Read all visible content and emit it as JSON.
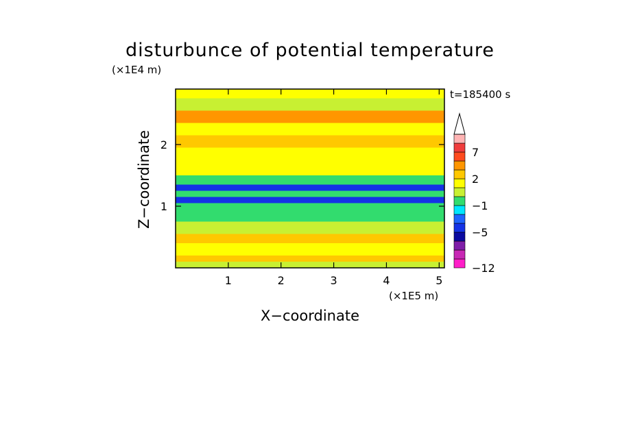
{
  "chart_data": {
    "type": "heatmap",
    "title": "disturbunce of potential temperature",
    "xlabel": "X−coordinate",
    "ylabel": "Z−coordinate",
    "x_unit": "(×1E5 m)",
    "z_unit": "(×1E4 m)",
    "time_label": "t=185400 s",
    "xlim": [
      0,
      5.1
    ],
    "ylim": [
      0,
      2.9
    ],
    "x_ticks": [
      1,
      2,
      3,
      4,
      5
    ],
    "y_ticks": [
      1,
      2
    ],
    "colorbar": {
      "levels": [
        -12,
        -11,
        -9,
        -7,
        -5,
        -4,
        -3,
        -1,
        0,
        1,
        2,
        3,
        5,
        7,
        8,
        9
      ],
      "tick_labels": [
        "7",
        "2",
        "−1",
        "−5",
        "−12"
      ],
      "tick_values": [
        7,
        2,
        -1,
        -5,
        -12
      ],
      "colors": [
        "#ff1ec8",
        "#c828b4",
        "#7f1ea8",
        "#0a0aa0",
        "#1432e6",
        "#1e64ff",
        "#00e6ff",
        "#32dc6e",
        "#c8f032",
        "#ffff00",
        "#ffc800",
        "#ff9600",
        "#ff4b1e",
        "#f03c3c",
        "#ffb4b4"
      ],
      "extend": "max"
    },
    "bands": [
      {
        "z": [
          0.0,
          0.1
        ],
        "value": 0.5
      },
      {
        "z": [
          0.1,
          0.2
        ],
        "value": 2.0
      },
      {
        "z": [
          0.2,
          0.4
        ],
        "value": 1.0
      },
      {
        "z": [
          0.4,
          0.55
        ],
        "value": 2.5
      },
      {
        "z": [
          0.55,
          0.75
        ],
        "value": 0.5
      },
      {
        "z": [
          0.75,
          0.9
        ],
        "value": -0.5
      },
      {
        "z": [
          0.9,
          1.05
        ],
        "value": -1.0
      },
      {
        "z": [
          1.05,
          1.15
        ],
        "value": -4.5
      },
      {
        "z": [
          1.15,
          1.25
        ],
        "value": -1.0
      },
      {
        "z": [
          1.25,
          1.35
        ],
        "value": -4.5
      },
      {
        "z": [
          1.35,
          1.5
        ],
        "value": -1.0
      },
      {
        "z": [
          1.5,
          1.75
        ],
        "value": 1.5
      },
      {
        "z": [
          1.75,
          1.95
        ],
        "value": 1.0
      },
      {
        "z": [
          1.95,
          2.15
        ],
        "value": 2.0
      },
      {
        "z": [
          2.15,
          2.35
        ],
        "value": 1.0
      },
      {
        "z": [
          2.35,
          2.55
        ],
        "value": 3.0
      },
      {
        "z": [
          2.55,
          2.75
        ],
        "value": 0.0
      },
      {
        "z": [
          2.75,
          2.9
        ],
        "value": 1.0
      }
    ]
  }
}
